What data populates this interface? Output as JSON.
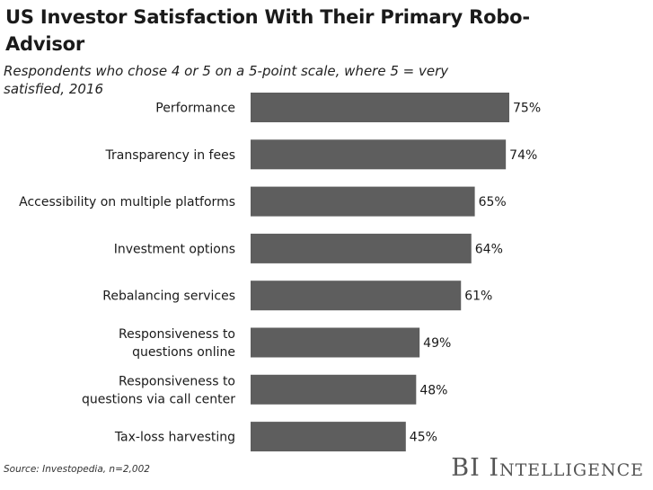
{
  "header": {
    "title": "US Investor Satisfaction With Their Primary Robo-Advisor",
    "subtitle": "Respondents who chose 4 or 5 on a 5-point scale, where 5 = very satisfied, 2016"
  },
  "footer": {
    "source": "Source: Investopedia, n=2,002",
    "brand": "BI Intelligence"
  },
  "colors": {
    "bar": "#5e5e5e",
    "text": "#1a1a1a"
  },
  "chart_data": {
    "type": "bar",
    "orientation": "horizontal",
    "categories": [
      "Performance",
      "Transparency in fees",
      "Accessibility on multiple platforms",
      "Investment options",
      "Rebalancing services",
      "Responsiveness to questions online",
      "Responsiveness to questions via call center",
      "Tax-loss harvesting"
    ],
    "category_lines": [
      [
        "Performance"
      ],
      [
        "Transparency in fees"
      ],
      [
        "Accessibility on multiple platforms"
      ],
      [
        "Investment options"
      ],
      [
        "Rebalancing services"
      ],
      [
        "Responsiveness to",
        "questions online"
      ],
      [
        "Responsiveness to",
        "questions via call center"
      ],
      [
        "Tax-loss harvesting"
      ]
    ],
    "values": [
      75,
      74,
      65,
      64,
      61,
      49,
      48,
      45
    ],
    "value_labels": [
      "75%",
      "74%",
      "65%",
      "64%",
      "61%",
      "49%",
      "48%",
      "45%"
    ],
    "unit": "%",
    "xlim": [
      0,
      100
    ],
    "grid": false,
    "legend": "none"
  }
}
